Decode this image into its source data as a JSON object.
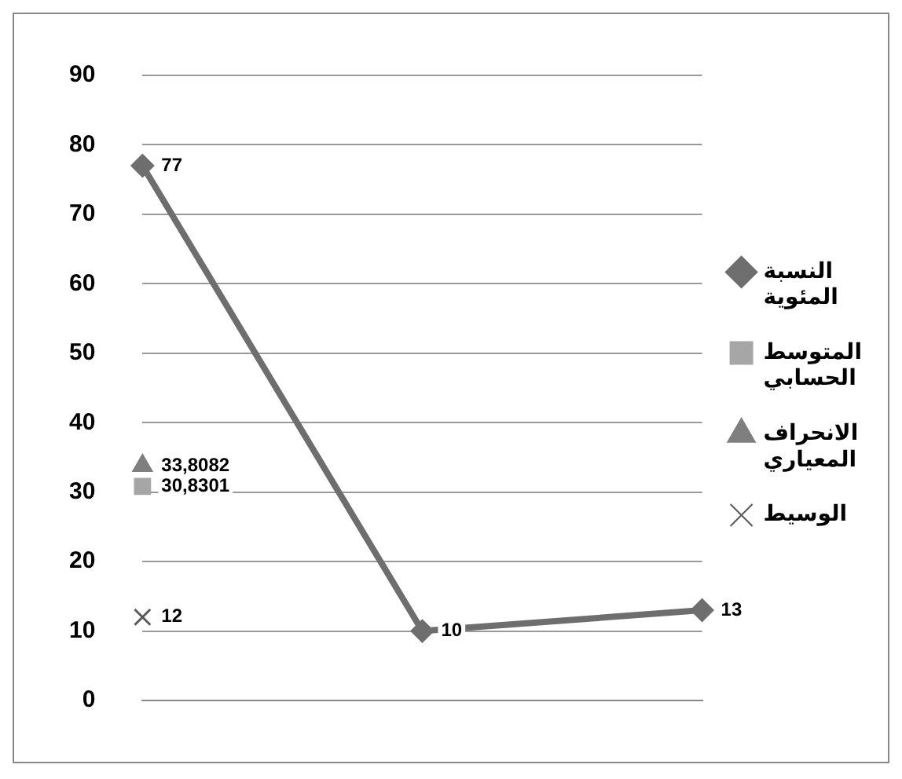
{
  "chart_data": {
    "type": "line",
    "categories": [
      null,
      null,
      null
    ],
    "series": [
      {
        "name": "النسبة المئوية",
        "color": "#6e6e6e",
        "marker": "diamond",
        "values": [
          77,
          10,
          13
        ],
        "value_labels": [
          "77",
          "10",
          "13"
        ]
      },
      {
        "name": "المتوسط الحسابي",
        "color": "#a6a6a6",
        "marker": "square",
        "values": [
          30.8301,
          null,
          null
        ],
        "value_labels": [
          "30,8301",
          null,
          null
        ]
      },
      {
        "name": "الانحراف المعياري",
        "color": "#7f7f7f",
        "marker": "triangle",
        "values": [
          33.8082,
          null,
          null
        ],
        "value_labels": [
          "33,8082",
          null,
          null
        ]
      },
      {
        "name": "الوسيط",
        "color": "#595959",
        "marker": "cross",
        "values": [
          12,
          null,
          null
        ],
        "value_labels": [
          "12",
          null,
          null
        ]
      }
    ],
    "ylim": [
      0,
      90
    ],
    "yticks": [
      0,
      10,
      20,
      30,
      40,
      50,
      60,
      70,
      80,
      90
    ],
    "grid": "y",
    "legend": "right"
  }
}
